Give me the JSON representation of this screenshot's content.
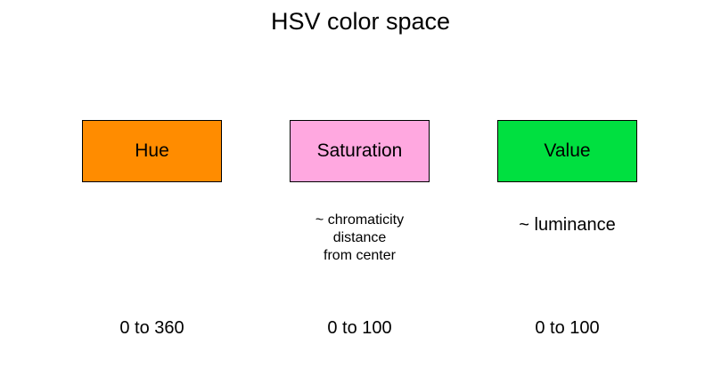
{
  "title": "HSV color space",
  "components": [
    {
      "label": "Hue",
      "color": "#ff8c00",
      "description": [],
      "range": "0 to 360"
    },
    {
      "label": "Saturation",
      "color": "#ffa8e0",
      "description": [
        "~ chromaticity",
        "distance",
        "from center"
      ],
      "range": "0 to 100"
    },
    {
      "label": "Value",
      "color": "#00e040",
      "description": [
        "~ luminance"
      ],
      "range": "0 to 100"
    }
  ]
}
